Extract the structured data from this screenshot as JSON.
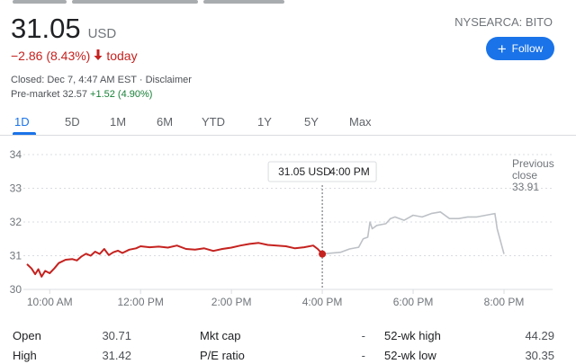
{
  "quote": {
    "price": "31.05",
    "currency": "USD",
    "change": "−2.86 (8.43%)",
    "change_period": "today",
    "closed_text": "Closed: Dec 7, 4:47 AM EST · Disclaimer",
    "premarket_label": "Pre-market 32.57",
    "premarket_change": "+1.52 (4.90%)",
    "exchange": "NYSEARCA: BITO",
    "follow_label": "Follow",
    "colors": {
      "down": "#c5221f",
      "up": "#188038",
      "accent": "#1a73e8",
      "afterhours": "#bdc1c6"
    }
  },
  "tabs": [
    "1D",
    "5D",
    "1M",
    "6M",
    "YTD",
    "1Y",
    "5Y",
    "Max"
  ],
  "active_tab": "1D",
  "chart_data": {
    "type": "line",
    "x_unit": "hours (Eastern time)",
    "xlim": [
      9.5,
      20.0
    ],
    "ylim": [
      30,
      34
    ],
    "yticks": [
      30,
      31,
      32,
      33,
      34
    ],
    "xtick_labels": [
      {
        "x": 10,
        "label": "10:00 AM"
      },
      {
        "x": 12,
        "label": "12:00 PM"
      },
      {
        "x": 14,
        "label": "2:00 PM"
      },
      {
        "x": 16,
        "label": "4:00 PM"
      },
      {
        "x": 18,
        "label": "6:00 PM"
      },
      {
        "x": 20,
        "label": "8:00 PM"
      }
    ],
    "grid": "horizontal dotted",
    "previous_close": 33.91,
    "previous_close_label": [
      "Previous",
      "close",
      "33.91"
    ],
    "tooltip": {
      "value": "31.05 USD",
      "time": "4:00 PM",
      "x": 16,
      "y": 31.05
    },
    "series": [
      {
        "session": "regular",
        "color": "#c5221f",
        "points": [
          [
            9.5,
            30.75
          ],
          [
            9.6,
            30.62
          ],
          [
            9.68,
            30.45
          ],
          [
            9.75,
            30.6
          ],
          [
            9.82,
            30.38
          ],
          [
            9.9,
            30.55
          ],
          [
            10.0,
            30.48
          ],
          [
            10.1,
            30.62
          ],
          [
            10.2,
            30.78
          ],
          [
            10.35,
            30.88
          ],
          [
            10.5,
            30.9
          ],
          [
            10.6,
            30.86
          ],
          [
            10.7,
            30.98
          ],
          [
            10.8,
            31.06
          ],
          [
            10.9,
            31.0
          ],
          [
            11.0,
            31.12
          ],
          [
            11.1,
            31.05
          ],
          [
            11.2,
            31.2
          ],
          [
            11.3,
            31.02
          ],
          [
            11.4,
            31.1
          ],
          [
            11.5,
            31.15
          ],
          [
            11.6,
            31.08
          ],
          [
            11.75,
            31.18
          ],
          [
            11.9,
            31.22
          ],
          [
            12.0,
            31.28
          ],
          [
            12.2,
            31.25
          ],
          [
            12.4,
            31.27
          ],
          [
            12.6,
            31.24
          ],
          [
            12.8,
            31.3
          ],
          [
            13.0,
            31.2
          ],
          [
            13.2,
            31.18
          ],
          [
            13.4,
            31.22
          ],
          [
            13.6,
            31.14
          ],
          [
            13.8,
            31.2
          ],
          [
            14.0,
            31.24
          ],
          [
            14.2,
            31.3
          ],
          [
            14.4,
            31.35
          ],
          [
            14.6,
            31.38
          ],
          [
            14.8,
            31.32
          ],
          [
            15.0,
            31.3
          ],
          [
            15.2,
            31.28
          ],
          [
            15.4,
            31.22
          ],
          [
            15.6,
            31.25
          ],
          [
            15.8,
            31.3
          ],
          [
            15.9,
            31.2
          ],
          [
            16.0,
            31.05
          ]
        ]
      },
      {
        "session": "after-hours",
        "color": "#bdc1c6",
        "points": [
          [
            16.0,
            31.05
          ],
          [
            16.4,
            31.1
          ],
          [
            16.6,
            31.2
          ],
          [
            16.8,
            31.25
          ],
          [
            16.9,
            31.5
          ],
          [
            17.0,
            31.55
          ],
          [
            17.05,
            32.0
          ],
          [
            17.1,
            31.8
          ],
          [
            17.2,
            31.9
          ],
          [
            17.4,
            31.95
          ],
          [
            17.5,
            32.1
          ],
          [
            17.6,
            32.15
          ],
          [
            17.8,
            32.05
          ],
          [
            18.0,
            32.2
          ],
          [
            18.2,
            32.15
          ],
          [
            18.4,
            32.25
          ],
          [
            18.6,
            32.3
          ],
          [
            18.8,
            32.1
          ],
          [
            19.0,
            32.1
          ],
          [
            19.2,
            32.15
          ],
          [
            19.4,
            32.15
          ],
          [
            19.6,
            32.2
          ],
          [
            19.8,
            32.25
          ],
          [
            19.85,
            31.8
          ],
          [
            20.0,
            31.05
          ]
        ]
      }
    ]
  },
  "stats": [
    {
      "label": "Open",
      "value": "30.71",
      "label2": "Mkt cap",
      "value2": "-",
      "label3": "52-wk high",
      "value3": "44.29"
    },
    {
      "label": "High",
      "value": "31.42",
      "label2": "P/E ratio",
      "value2": "-",
      "label3": "52-wk low",
      "value3": "30.35"
    }
  ]
}
